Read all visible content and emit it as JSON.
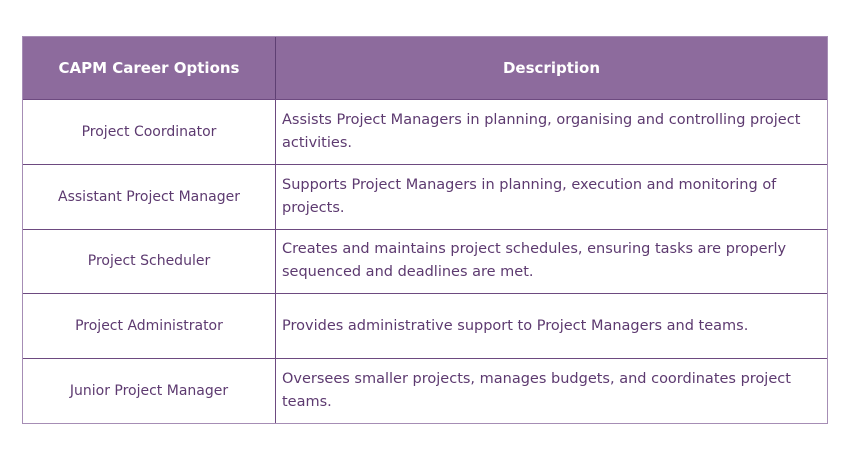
{
  "table": {
    "headers": {
      "career": "CAPM Career Options",
      "description": "Description"
    },
    "rows": [
      {
        "role": "Project Coordinator",
        "description": "Assists Project Managers in planning, organising and controlling project activities."
      },
      {
        "role": "Assistant Project Manager",
        "description": "Supports Project Managers in planning, execution and monitoring of projects."
      },
      {
        "role": "Project Scheduler",
        "description": "Creates and maintains project schedules, ensuring tasks are properly sequenced and deadlines are met."
      },
      {
        "role": "Project Administrator",
        "description": "Provides administrative support to Project Managers and teams."
      },
      {
        "role": "Junior Project Manager",
        "description": "Oversees smaller projects, manages budgets, and coordinates project teams."
      }
    ]
  },
  "colors": {
    "header_bg": "#8d6b9d",
    "header_text": "#ffffff",
    "body_text": "#5d3a70",
    "border_inner": "#6d4a80",
    "border_outer": "#a68db5",
    "background": "#ffffff"
  },
  "chart_data": {
    "type": "table",
    "title": "CAPM Career Options",
    "columns": [
      "CAPM Career Options",
      "Description"
    ],
    "rows": [
      [
        "Project Coordinator",
        "Assists Project Managers in planning, organising and controlling project activities."
      ],
      [
        "Assistant Project Manager",
        "Supports Project Managers in planning, execution and monitoring of projects."
      ],
      [
        "Project Scheduler",
        "Creates and maintains project schedules, ensuring tasks are properly sequenced and deadlines are met."
      ],
      [
        "Project Administrator",
        "Provides administrative support to Project Managers and teams."
      ],
      [
        "Junior Project Manager",
        "Oversees smaller projects, manages budgets, and coordinates project teams."
      ]
    ],
    "layout": {
      "header_style": "purple background, white bold centered text",
      "body_style": "white background, purple text; first column centered, second column left-aligned",
      "grid": "on"
    }
  }
}
